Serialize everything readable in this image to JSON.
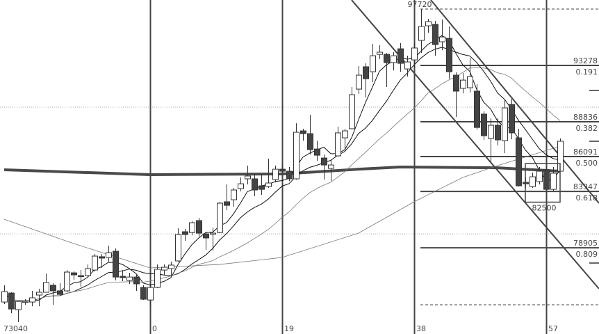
{
  "chart_data": {
    "type": "candlestick",
    "title": "",
    "ylim": [
      72110,
      98433
    ],
    "grid": false,
    "colors": {
      "up_fill": "#ffffff",
      "down_fill": "#444444",
      "outline": "#333333",
      "ma_thin": "#111111",
      "ma_long": "#777777",
      "ma_thick": "#4a4a4a"
    },
    "x_start_index": -21,
    "x_tick_labels": [
      "0",
      "19",
      "38",
      "57"
    ],
    "x_tick_indices": [
      0,
      19,
      38,
      57
    ],
    "candles": [
      [
        74630,
        75450,
        75950,
        74470
      ],
      [
        75340,
        74080,
        75400,
        73750
      ],
      [
        74030,
        74680,
        74680,
        73040
      ],
      [
        74630,
        74680,
        74850,
        74410
      ],
      [
        74630,
        74960,
        75510,
        74300
      ],
      [
        75180,
        75400,
        75670,
        74300
      ],
      [
        75400,
        76170,
        76880,
        75400
      ],
      [
        75950,
        75510,
        76110,
        74410
      ],
      [
        75510,
        75230,
        76110,
        75120
      ],
      [
        75510,
        76990,
        77150,
        75400
      ],
      [
        76930,
        76770,
        77040,
        76390
      ],
      [
        76710,
        76660,
        77150,
        75840
      ],
      [
        76710,
        77260,
        77590,
        76600
      ],
      [
        77150,
        78250,
        78410,
        77040
      ],
      [
        78200,
        78090,
        78410,
        77320
      ],
      [
        78140,
        78520,
        79070,
        77810
      ],
      [
        78630,
        76600,
        78850,
        76330
      ],
      [
        76660,
        76550,
        77150,
        76280
      ],
      [
        76330,
        76600,
        76930,
        76060
      ],
      [
        76600,
        76060,
        76770,
        75510
      ],
      [
        75780,
        74850,
        75950,
        74790
      ],
      [
        74790,
        75780,
        75950,
        74300
      ],
      [
        75780,
        77210,
        77590,
        75730
      ],
      [
        77150,
        77370,
        77590,
        76770
      ],
      [
        77260,
        77540,
        77810,
        76710
      ],
      [
        77870,
        79950,
        80440,
        77810
      ],
      [
        80170,
        79950,
        80390,
        79460
      ],
      [
        80110,
        80880,
        80990,
        79890
      ],
      [
        81050,
        80060,
        81260,
        79780
      ],
      [
        80000,
        79680,
        80170,
        78740
      ],
      [
        80060,
        80060,
        80500,
        78690
      ],
      [
        80110,
        82420,
        82530,
        80060
      ],
      [
        82530,
        82250,
        83900,
        81870
      ],
      [
        82690,
        83460,
        83620,
        82140
      ],
      [
        83570,
        83950,
        84450,
        83350
      ],
      [
        84340,
        84560,
        85380,
        83900
      ],
      [
        84340,
        83460,
        84720,
        82970
      ],
      [
        83790,
        83510,
        84720,
        83080
      ],
      [
        83730,
        84010,
        85930,
        83620
      ],
      [
        84280,
        85100,
        85380,
        84060
      ],
      [
        85100,
        84940,
        85380,
        84720
      ],
      [
        84940,
        84340,
        85270,
        84170
      ],
      [
        84340,
        88010,
        88720,
        84280
      ],
      [
        88120,
        87900,
        88290,
        87350
      ],
      [
        87900,
        86640,
        89380,
        86260
      ],
      [
        86690,
        86200,
        87350,
        85760
      ],
      [
        85980,
        85430,
        86260,
        84280
      ],
      [
        85160,
        85430,
        85820,
        84170
      ],
      [
        86150,
        87960,
        88450,
        86090
      ],
      [
        87570,
        88120,
        88290,
        86580
      ],
      [
        88290,
        90970,
        91580,
        88230
      ],
      [
        91410,
        92510,
        93220,
        91030
      ],
      [
        93170,
        92230,
        93440,
        90750
      ],
      [
        92780,
        94040,
        94980,
        91960
      ],
      [
        94150,
        94320,
        94870,
        93770
      ],
      [
        94150,
        93500,
        94260,
        91580
      ],
      [
        93500,
        94040,
        94320,
        92890
      ],
      [
        94590,
        93440,
        95030,
        92780
      ],
      [
        93000,
        93550,
        94040,
        92400
      ],
      [
        93710,
        94650,
        95030,
        93060
      ],
      [
        95250,
        96350,
        97720,
        94260
      ],
      [
        96400,
        96730,
        96950,
        95850
      ],
      [
        96510,
        94920,
        96780,
        94040
      ],
      [
        95140,
        95520,
        96890,
        94480
      ],
      [
        95410,
        92780,
        96350,
        92230
      ],
      [
        92510,
        91250,
        92730,
        89220
      ],
      [
        91470,
        92120,
        92670,
        91080
      ],
      [
        91520,
        92400,
        93880,
        91140
      ],
      [
        91250,
        88390,
        91800,
        88230
      ],
      [
        89440,
        87740,
        89660,
        87410
      ],
      [
        87520,
        88560,
        89110,
        85710
      ],
      [
        88560,
        87410,
        89110,
        86970
      ],
      [
        87350,
        89930,
        90590,
        86370
      ],
      [
        90200,
        87960,
        90640,
        87460
      ],
      [
        87570,
        83790,
        88290,
        83730
      ],
      [
        84060,
        83950,
        84450,
        83620
      ],
      [
        83730,
        84500,
        84830,
        83620
      ],
      [
        84120,
        84940,
        85270,
        83900
      ],
      [
        85050,
        83510,
        85270,
        83460
      ],
      [
        83510,
        84780,
        85270,
        83350
      ],
      [
        84940,
        87300,
        87520,
        84940
      ]
    ],
    "candle_fields": [
      "open",
      "close",
      "high",
      "low"
    ],
    "moving_averages": {
      "short_periods": [
        5,
        10
      ],
      "long": {
        "index": [
          -21,
          -11,
          0,
          10,
          19,
          30,
          38,
          45,
          50,
          59
        ],
        "values": [
          81150,
          79240,
          77320,
          77590,
          78140,
          80060,
          82530,
          84450,
          85380,
          86910
        ]
      },
      "thick": {
        "index": [
          -21,
          0,
          19,
          30,
          36,
          50,
          59
        ],
        "values": [
          85050,
          84670,
          84720,
          85100,
          85270,
          85210,
          84940
        ]
      },
      "medium_period": 20
    },
    "fib_levels": [
      {
        "price": "93278",
        "ratio": "0.191",
        "value": 93278
      },
      {
        "price": "88836",
        "ratio": "0.382",
        "value": 88836
      },
      {
        "price": "86091",
        "ratio": "0.500",
        "value": 86091
      },
      {
        "price": "83347",
        "ratio": "0.618",
        "value": 83347
      },
      {
        "price": "78905",
        "ratio": "0.809",
        "value": 78905
      }
    ],
    "annotations": {
      "high_label": "97720",
      "high_value": 97720,
      "low_label": "73040",
      "low_value": 73040,
      "box_low_label": "82500",
      "box_low_value": 82500
    },
    "channel_lines": [
      {
        "from": [
          29,
          98433
        ],
        "to": [
          64.6,
          75674
        ]
      },
      {
        "from": [
          40.4,
          98433
        ],
        "to": [
          64.6,
          82420
        ]
      }
    ]
  }
}
